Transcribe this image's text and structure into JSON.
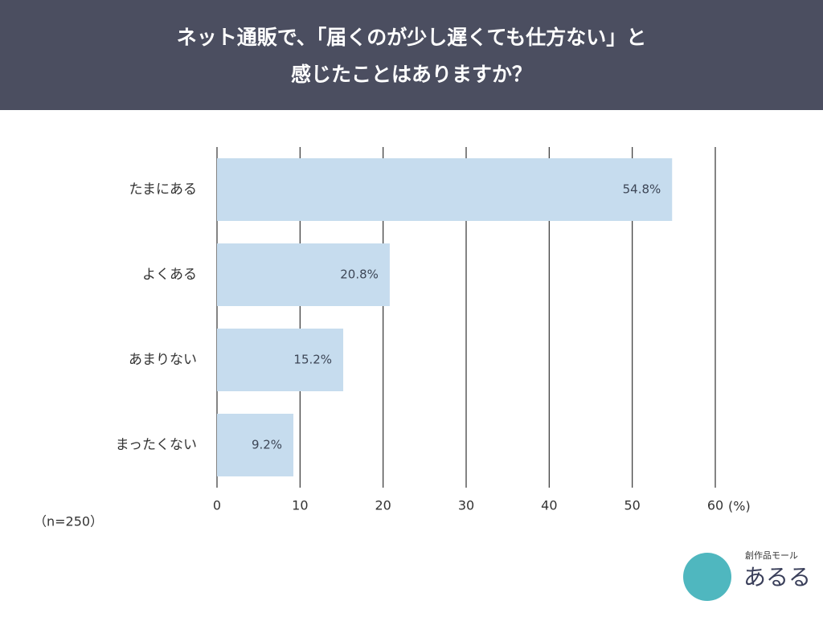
{
  "chart_data": {
    "type": "bar",
    "orientation": "horizontal",
    "title": [
      "ネット通販で、「届くのが少し遅くても仕方ない」と",
      "感じたことはありますか？"
    ],
    "categories": [
      "たまにある",
      "よくある",
      "あまりない",
      "まったくない"
    ],
    "values": [
      54.8,
      20.8,
      15.2,
      9.2
    ],
    "value_labels": [
      "54.8%",
      "20.8%",
      "15.2%",
      "9.2%"
    ],
    "color": "#c6dcee",
    "xlim": [
      0,
      60
    ],
    "xticks": [
      0,
      10,
      20,
      30,
      40,
      50,
      60
    ],
    "grid": true,
    "axis_unit": "(%)",
    "note": "（n=250）"
  },
  "logo": {
    "tagline": "創作品モール",
    "name": "あるる"
  }
}
